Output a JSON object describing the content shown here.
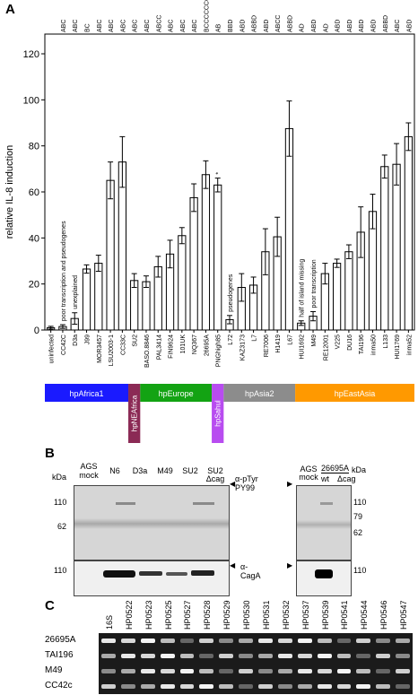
{
  "panels": {
    "a": "A",
    "b": "B",
    "c": "C"
  },
  "chart_data": {
    "type": "bar",
    "ylabel": "relative IL-8 induction",
    "ylim": [
      0,
      120
    ],
    "yticks": [
      0,
      20,
      40,
      60,
      80,
      100,
      120
    ],
    "categories": [
      "uninfected",
      "CC42C",
      "D3a",
      "J99",
      "MOR3457",
      "LSU2003-1",
      "CC33C",
      "SU2",
      "BASO.8846",
      "PAL3414",
      "FIN9624",
      "101UK",
      "NQ367",
      "26695A",
      "PNGhigh85",
      "L72",
      "KAZ3173",
      "L7",
      "RE7006",
      "H1419",
      "L67",
      "HUI1692",
      "M49",
      "RE12001",
      "V225",
      "DU16",
      "TAI196",
      "inma50",
      "L133",
      "HUI1769",
      "inma52"
    ],
    "top_labels": [
      "",
      "ABC",
      "ABC",
      "BC",
      "ABC",
      "ABC",
      "ABC",
      "ABC",
      "ABC",
      "ABCC",
      "ABC",
      "ABC",
      "ABC",
      "BCCCCCCC",
      "AB",
      "BBD",
      "ABD",
      "ABBD",
      "ABD",
      "ABCC",
      "ABBD",
      "AD",
      "ABD",
      "AD",
      "ABD",
      "ABD",
      "ABD",
      "ABD",
      "ABBD",
      "ABC",
      "ABD"
    ],
    "values": [
      1,
      1.5,
      5,
      26.5,
      29,
      65,
      73,
      21.5,
      21,
      27.5,
      33,
      41,
      57.5,
      67.5,
      63,
      4.5,
      18.5,
      19.5,
      34,
      40.5,
      87.5,
      3,
      6,
      24.5,
      29,
      34,
      42.5,
      51.5,
      71,
      72,
      84
    ],
    "errors": [
      0.6,
      0.8,
      2.5,
      1.8,
      3.5,
      8,
      11,
      3,
      2.5,
      4.5,
      6,
      3.5,
      6,
      6,
      3,
      1.8,
      6,
      3.5,
      10,
      8.5,
      12,
      1,
      2,
      4.5,
      1.8,
      3,
      11,
      7.5,
      5,
      9,
      6
    ],
    "annotations": [
      {
        "text": "poor transcription and pseudogenes",
        "category": "CC42C"
      },
      {
        "text": "unexplained",
        "category": "D3a"
      },
      {
        "text": "pseudogenes",
        "category": "L72"
      },
      {
        "text": "half of island missing",
        "category": "HUI1692"
      },
      {
        "text": "poor transcription",
        "category": "M49"
      },
      {
        "text": "*",
        "category": "PNGhigh85"
      }
    ],
    "populations": [
      {
        "name": "hpAfrica1",
        "color": "#1a1aff",
        "start": 0,
        "end": 6
      },
      {
        "name": "hpNEAfrica",
        "color": "#8b2a55",
        "start": 7,
        "end": 7
      },
      {
        "name": "hpEurope",
        "color": "#13a313",
        "start": 8,
        "end": 13
      },
      {
        "name": "hpSahul",
        "color": "#b84cf0",
        "start": 14,
        "end": 14
      },
      {
        "name": "hpAsia2",
        "color": "#8c8c8c",
        "start": 15,
        "end": 20
      },
      {
        "name": "hpEastAsia",
        "color": "#ff9900",
        "start": 21,
        "end": 30
      }
    ]
  },
  "blot_left": {
    "header": "AGS mock",
    "lanes": [
      "N6",
      "D3a",
      "M49",
      "SU2",
      "SU2 Δcag"
    ],
    "kda_label": "kDa",
    "markers_top": [
      "110",
      "62"
    ],
    "markers_bottom": [
      "110"
    ],
    "antibody_top": "α-pTyr PY99",
    "antibody_bottom": "α-CagA"
  },
  "blot_right": {
    "header": "AGS mock",
    "strain": "26695A",
    "lanes": [
      "wt",
      "Δcag"
    ],
    "kda_label": "kDa",
    "markers_top": [
      "110",
      "79",
      "62"
    ],
    "markers_bottom": [
      "110"
    ]
  },
  "gel": {
    "lanes": [
      "16S",
      "HP0522",
      "HP0523",
      "HP0525",
      "HP0527",
      "HP0528",
      "HP0529",
      "HP0530",
      "HP0531",
      "HP0532",
      "HP0537",
      "HP0539",
      "HP0541",
      "HP0544",
      "HP0546",
      "HP0547"
    ],
    "rows": [
      "26695A",
      "TAI196",
      "M49",
      "CC42c"
    ]
  }
}
